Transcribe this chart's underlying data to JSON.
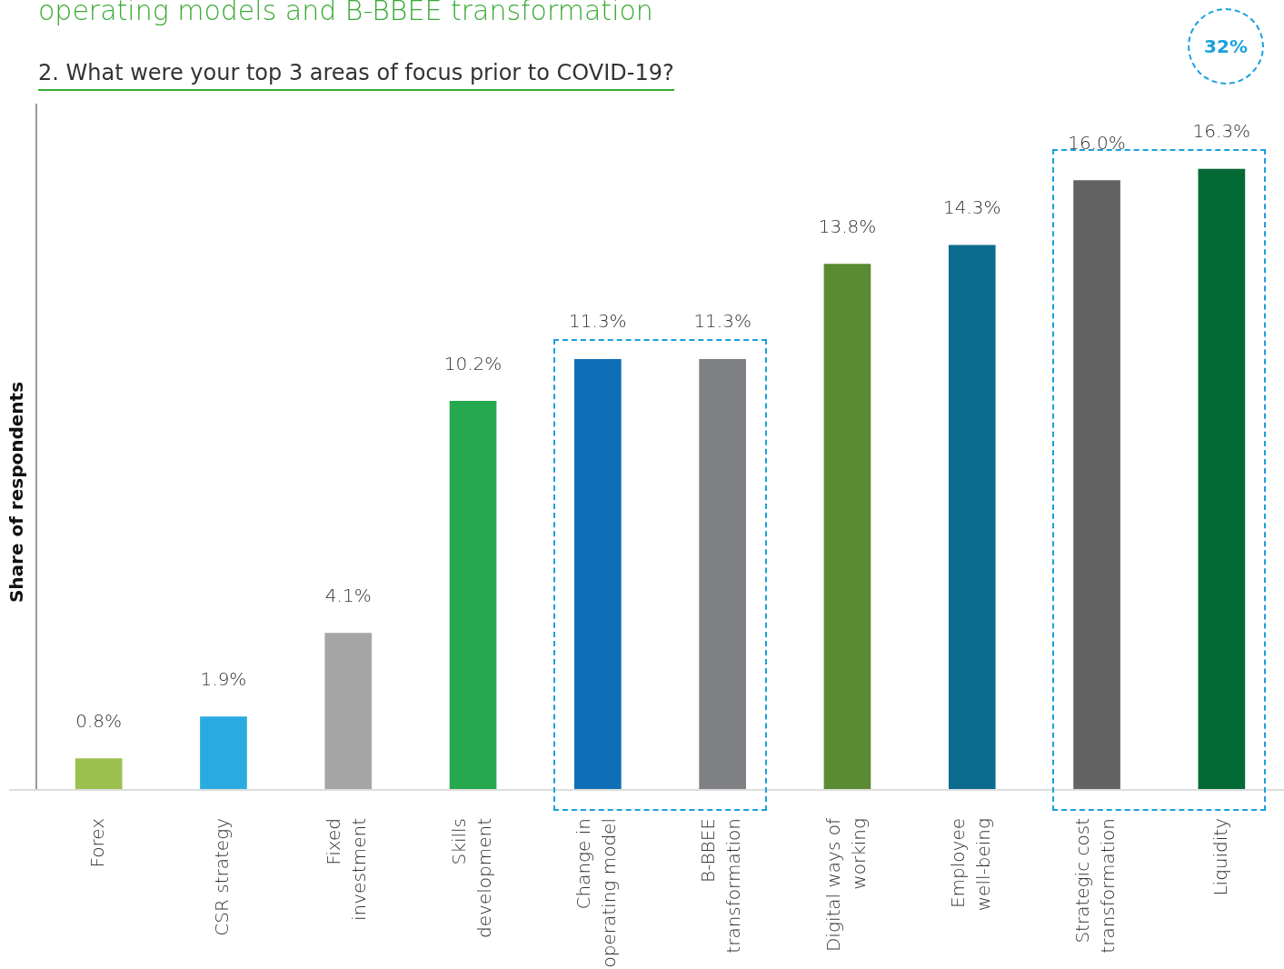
{
  "chart_data": {
    "type": "bar",
    "title": "operating models and B-BBEE transformation",
    "subtitle": "2. What were your top 3 areas of focus prior to COVID-19?",
    "ylabel": "Share of respondents",
    "categories": [
      "Forex",
      "CSR strategy",
      "Fixed investment",
      "Skills development",
      "Change in operating model",
      "B-BBEE transformation",
      "Digital ways of working",
      "Employee well-being",
      "Strategic cost transformation",
      "Liquidity"
    ],
    "values": [
      0.8,
      1.9,
      4.1,
      10.2,
      11.3,
      11.3,
      13.8,
      14.3,
      16.0,
      16.3
    ],
    "colors": [
      "#9ac04f",
      "#29abe2",
      "#a5a5a5",
      "#26a84f",
      "#0f6fb6",
      "#7f8083",
      "#5a8a32",
      "#0b6b8f",
      "#636363",
      "#046a35"
    ],
    "value_labels": [
      "0.8%",
      "1.9%",
      "4.1%",
      "10.2%",
      "11.3%",
      "11.3%",
      "13.8%",
      "14.3%",
      "16.0%",
      "16.3%"
    ],
    "annotations": [
      "32%"
    ],
    "legend": false
  }
}
